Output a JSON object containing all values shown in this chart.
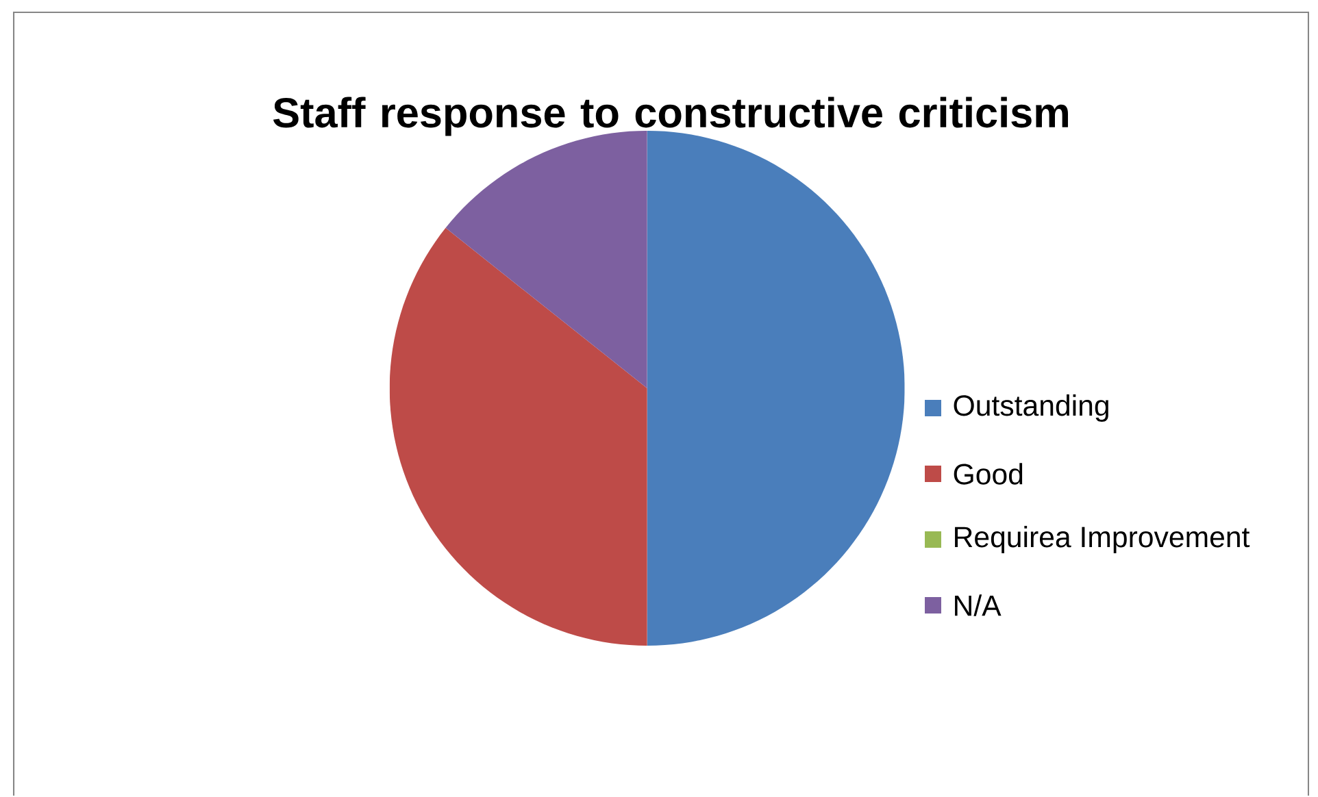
{
  "chart_data": {
    "type": "pie",
    "title": "Staff response to constructive criticism",
    "categories": [
      "Outstanding",
      "Good",
      "Requirea Improvement",
      "N/A"
    ],
    "values": [
      50,
      35.7,
      0,
      14.3
    ],
    "colors": [
      "#4a7ebb",
      "#be4b48",
      "#98b954",
      "#7d60a0"
    ],
    "legend": "right"
  }
}
